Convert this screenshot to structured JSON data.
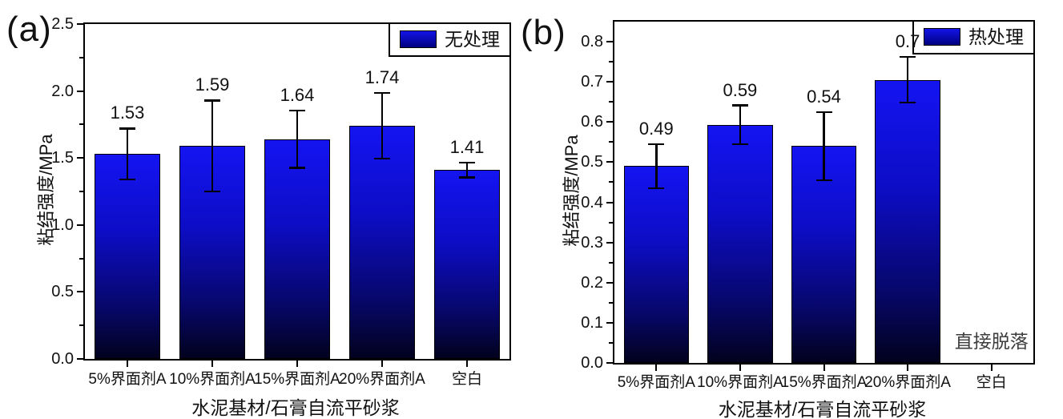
{
  "figure": {
    "background": "#ffffff",
    "axis_color": "#000000",
    "text_color": "#111111",
    "annotation_color": "#3d3d3d",
    "bar_border_color": "#000000",
    "bar_gradient": [
      "#1414f2",
      "#0d0dc6",
      "#07076a",
      "#02021e"
    ],
    "legend_swatch_gradient": [
      "#1414e8",
      "#000080"
    ]
  },
  "chart_data": [
    {
      "type": "bar",
      "panel_tag": "(a)",
      "legend": "无处理",
      "legend_position": "top-right",
      "xlabel": "水泥基材/石膏自流平砂浆",
      "ylabel": "粘结强度/MPa",
      "categories": [
        "5%界面剂A",
        "10%界面剂A",
        "15%界面剂A",
        "20%界面剂A",
        "空白"
      ],
      "values": [
        1.53,
        1.59,
        1.64,
        1.74,
        1.41
      ],
      "value_labels": [
        "1.53",
        "1.59",
        "1.64",
        "1.74",
        "1.41"
      ],
      "errors": [
        0.19,
        0.34,
        0.215,
        0.245,
        0.055
      ],
      "ylim": [
        0,
        2.5
      ],
      "y_tick_max": 2.5,
      "y_major_step": 0.5,
      "y_minor_step": 0.25,
      "y_tick_decimals": 1,
      "grid": false,
      "annotation": null
    },
    {
      "type": "bar",
      "panel_tag": "(b)",
      "legend": "热处理",
      "legend_position": "top-right",
      "xlabel": "水泥基材/石膏自流平砂浆",
      "ylabel": "粘结强度/MPa",
      "categories": [
        "5%界面剂A",
        "10%界面剂A",
        "15%界面剂A",
        "20%界面剂A",
        "空白"
      ],
      "values": [
        0.49,
        0.593,
        0.54,
        0.705,
        null
      ],
      "value_labels": [
        "0.49",
        "0.59",
        "0.54",
        "0.7",
        ""
      ],
      "errors": [
        0.055,
        0.048,
        0.085,
        0.057,
        null
      ],
      "ylim": [
        0,
        0.85
      ],
      "y_tick_max": 0.8,
      "y_major_step": 0.1,
      "y_minor_step": 0.05,
      "y_tick_decimals": 1,
      "grid": false,
      "annotation": {
        "text": "直接脱落",
        "category_index": 4
      }
    }
  ]
}
